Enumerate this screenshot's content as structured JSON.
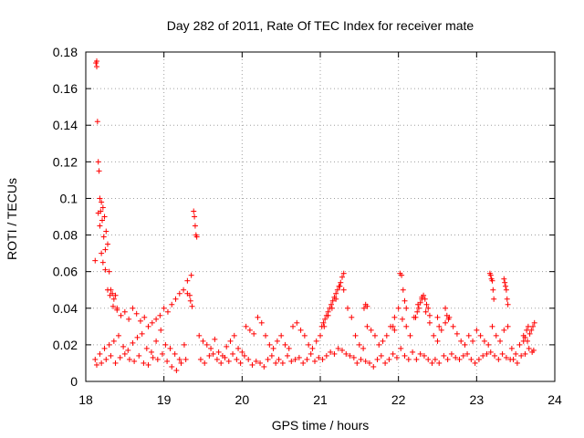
{
  "chart_data": {
    "type": "scatter",
    "title": "Day 282 of 2011, Rate Of TEC Index for receiver mate",
    "xlabel": "GPS time / hours",
    "ylabel": "ROTI / TECUs",
    "xlim": [
      18,
      24
    ],
    "ylim": [
      0,
      0.18
    ],
    "xticks": [
      18,
      19,
      20,
      21,
      22,
      23,
      24
    ],
    "xtick_labels": [
      "18",
      "19",
      "20",
      "21",
      "22",
      "23",
      "24"
    ],
    "yticks": [
      0,
      0.02,
      0.04,
      0.06,
      0.08,
      0.1,
      0.12,
      0.14,
      0.16,
      0.18
    ],
    "ytick_labels": [
      "0",
      "0.02",
      "0.04",
      "0.06",
      "0.08",
      "0.1",
      "0.12",
      "0.14",
      "0.16",
      "0.18"
    ],
    "grid": true,
    "marker": "+",
    "color": "#ff0000",
    "series": [
      {
        "name": "ROTI",
        "x": [
          18.14,
          18.15,
          18.16,
          18.17,
          18.18,
          18.2,
          18.22,
          18.24,
          18.26,
          18.28,
          18.21,
          18.23,
          18.19,
          18.25,
          18.3,
          18.32,
          18.34,
          18.36,
          18.38,
          18.4,
          18.12,
          18.13,
          18.14,
          18.16,
          18.18,
          18.2,
          18.22,
          18.25,
          18.28,
          18.31,
          18.35,
          18.4,
          18.45,
          18.5,
          18.55,
          18.6,
          18.65,
          18.7,
          18.75,
          18.8,
          18.85,
          18.9,
          18.95,
          19.0,
          19.05,
          19.1,
          19.15,
          19.2,
          19.25,
          19.3,
          19.35,
          19.38,
          19.39,
          19.4,
          19.41,
          19.42,
          19.33,
          19.34,
          19.36,
          19.3,
          18.12,
          18.18,
          18.24,
          18.3,
          18.36,
          18.42,
          18.48,
          18.54,
          18.6,
          18.66,
          18.72,
          18.78,
          18.84,
          18.9,
          18.96,
          19.02,
          19.08,
          19.14,
          19.2,
          19.26,
          18.14,
          18.2,
          18.26,
          18.32,
          18.38,
          18.44,
          18.5,
          18.56,
          18.62,
          18.68,
          18.74,
          18.8,
          18.86,
          18.92,
          18.98,
          19.04,
          19.1,
          19.16,
          19.22,
          19.28,
          19.45,
          19.5,
          19.55,
          19.6,
          19.65,
          19.7,
          19.75,
          19.8,
          19.85,
          19.9,
          19.95,
          20.0,
          20.05,
          20.1,
          20.15,
          20.2,
          20.25,
          20.3,
          20.35,
          20.4,
          19.47,
          19.52,
          19.58,
          19.63,
          19.68,
          19.73,
          19.78,
          19.83,
          19.88,
          19.93,
          19.98,
          20.03,
          20.08,
          20.13,
          20.18,
          20.23,
          20.28,
          20.33,
          20.38,
          20.43,
          20.45,
          20.5,
          20.55,
          20.6,
          20.65,
          20.7,
          20.75,
          20.8,
          20.85,
          20.9,
          20.95,
          21.0,
          21.05,
          21.1,
          21.15,
          21.2,
          21.25,
          21.3,
          21.35,
          21.4,
          20.47,
          20.52,
          20.58,
          20.63,
          20.68,
          20.73,
          20.78,
          20.83,
          20.88,
          20.93,
          20.98,
          21.03,
          21.08,
          21.13,
          21.18,
          21.23,
          21.28,
          21.33,
          21.38,
          21.43,
          21.02,
          21.06,
          21.1,
          21.14,
          21.18,
          21.22,
          21.26,
          21.28,
          21.3,
          21.12,
          21.16,
          21.2,
          21.24,
          21.08,
          21.04,
          21.45,
          21.5,
          21.55,
          21.6,
          21.65,
          21.7,
          21.75,
          21.8,
          21.85,
          21.9,
          21.95,
          22.0,
          22.05,
          22.1,
          22.15,
          22.2,
          22.25,
          22.3,
          22.35,
          22.4,
          21.47,
          21.52,
          21.58,
          21.63,
          21.68,
          21.73,
          21.78,
          21.83,
          21.88,
          21.93,
          21.98,
          22.03,
          22.08,
          22.13,
          22.18,
          22.23,
          22.28,
          22.33,
          22.38,
          22.43,
          22.02,
          22.04,
          22.06,
          22.08,
          22.1,
          22.22,
          22.24,
          22.26,
          22.28,
          22.3,
          22.32,
          22.34,
          22.36,
          22.38,
          22.4,
          21.58,
          21.6,
          21.56,
          21.93,
          21.95,
          22.45,
          22.5,
          22.55,
          22.6,
          22.65,
          22.7,
          22.75,
          22.8,
          22.85,
          22.9,
          22.95,
          23.0,
          23.05,
          23.1,
          23.15,
          23.2,
          23.25,
          23.3,
          23.35,
          23.4,
          22.47,
          22.52,
          22.58,
          22.63,
          22.68,
          22.73,
          22.78,
          22.83,
          22.88,
          22.93,
          22.98,
          23.03,
          23.08,
          23.13,
          23.18,
          23.23,
          23.28,
          23.33,
          23.38,
          23.43,
          23.17,
          23.18,
          23.19,
          23.2,
          23.21,
          23.22,
          23.35,
          23.36,
          23.37,
          23.38,
          23.39,
          23.4,
          22.6,
          22.62,
          22.64,
          22.5,
          22.52,
          23.45,
          23.5,
          23.55,
          23.6,
          23.65,
          23.7,
          23.72,
          23.74,
          23.47,
          23.52,
          23.57,
          23.62,
          23.67,
          23.71,
          23.73,
          23.6,
          23.62,
          23.64,
          23.66,
          23.68
        ],
        "y": [
          0.175,
          0.142,
          0.12,
          0.115,
          0.1,
          0.098,
          0.095,
          0.09,
          0.082,
          0.075,
          0.088,
          0.079,
          0.093,
          0.072,
          0.06,
          0.05,
          0.048,
          0.045,
          0.047,
          0.04,
          0.066,
          0.174,
          0.172,
          0.092,
          0.085,
          0.07,
          0.065,
          0.061,
          0.05,
          0.047,
          0.041,
          0.039,
          0.036,
          0.038,
          0.034,
          0.04,
          0.037,
          0.033,
          0.035,
          0.03,
          0.032,
          0.034,
          0.036,
          0.04,
          0.038,
          0.042,
          0.045,
          0.048,
          0.05,
          0.055,
          0.058,
          0.093,
          0.09,
          0.085,
          0.08,
          0.079,
          0.047,
          0.044,
          0.041,
          0.048,
          0.012,
          0.015,
          0.018,
          0.02,
          0.022,
          0.025,
          0.019,
          0.017,
          0.021,
          0.024,
          0.026,
          0.018,
          0.016,
          0.022,
          0.028,
          0.02,
          0.018,
          0.015,
          0.012,
          0.02,
          0.009,
          0.01,
          0.012,
          0.014,
          0.01,
          0.013,
          0.015,
          0.012,
          0.011,
          0.014,
          0.01,
          0.009,
          0.013,
          0.012,
          0.015,
          0.011,
          0.008,
          0.006,
          0.01,
          0.012,
          0.025,
          0.022,
          0.02,
          0.018,
          0.023,
          0.016,
          0.014,
          0.019,
          0.022,
          0.025,
          0.018,
          0.016,
          0.03,
          0.028,
          0.026,
          0.035,
          0.032,
          0.025,
          0.02,
          0.018,
          0.012,
          0.01,
          0.014,
          0.015,
          0.012,
          0.01,
          0.013,
          0.011,
          0.015,
          0.012,
          0.01,
          0.014,
          0.012,
          0.009,
          0.011,
          0.01,
          0.008,
          0.012,
          0.014,
          0.01,
          0.022,
          0.025,
          0.02,
          0.018,
          0.03,
          0.032,
          0.028,
          0.025,
          0.02,
          0.018,
          0.022,
          0.025,
          0.03,
          0.036,
          0.04,
          0.045,
          0.052,
          0.05,
          0.04,
          0.035,
          0.012,
          0.01,
          0.014,
          0.011,
          0.012,
          0.013,
          0.01,
          0.012,
          0.015,
          0.011,
          0.013,
          0.012,
          0.014,
          0.016,
          0.015,
          0.018,
          0.017,
          0.015,
          0.014,
          0.013,
          0.03,
          0.034,
          0.038,
          0.042,
          0.046,
          0.05,
          0.054,
          0.057,
          0.059,
          0.04,
          0.044,
          0.048,
          0.052,
          0.036,
          0.032,
          0.025,
          0.02,
          0.018,
          0.03,
          0.028,
          0.025,
          0.02,
          0.022,
          0.025,
          0.03,
          0.035,
          0.04,
          0.034,
          0.03,
          0.025,
          0.035,
          0.042,
          0.045,
          0.038,
          0.032,
          0.01,
          0.012,
          0.011,
          0.01,
          0.008,
          0.012,
          0.014,
          0.01,
          0.012,
          0.015,
          0.013,
          0.018,
          0.014,
          0.012,
          0.016,
          0.012,
          0.015,
          0.014,
          0.012,
          0.01,
          0.059,
          0.058,
          0.05,
          0.044,
          0.04,
          0.035,
          0.038,
          0.04,
          0.043,
          0.046,
          0.047,
          0.045,
          0.042,
          0.04,
          0.036,
          0.042,
          0.041,
          0.04,
          0.03,
          0.028,
          0.025,
          0.022,
          0.028,
          0.032,
          0.035,
          0.03,
          0.026,
          0.022,
          0.02,
          0.025,
          0.022,
          0.028,
          0.025,
          0.022,
          0.02,
          0.03,
          0.025,
          0.022,
          0.028,
          0.03,
          0.012,
          0.01,
          0.014,
          0.012,
          0.015,
          0.013,
          0.012,
          0.014,
          0.015,
          0.012,
          0.01,
          0.012,
          0.014,
          0.015,
          0.016,
          0.014,
          0.012,
          0.015,
          0.013,
          0.012,
          0.059,
          0.058,
          0.056,
          0.055,
          0.05,
          0.045,
          0.056,
          0.054,
          0.052,
          0.05,
          0.045,
          0.042,
          0.04,
          0.036,
          0.034,
          0.035,
          0.03,
          0.018,
          0.015,
          0.02,
          0.025,
          0.022,
          0.028,
          0.03,
          0.032,
          0.012,
          0.01,
          0.014,
          0.015,
          0.018,
          0.016,
          0.017,
          0.022,
          0.024,
          0.028,
          0.03,
          0.026
        ]
      }
    ]
  }
}
